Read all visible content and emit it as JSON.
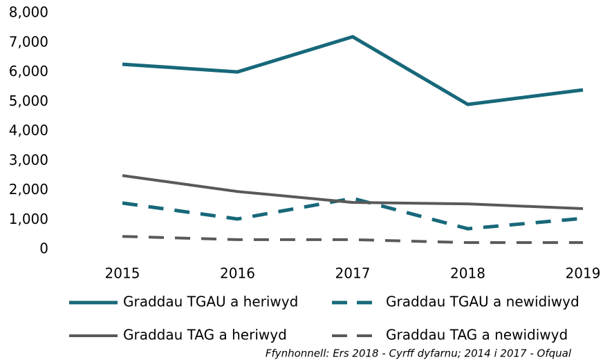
{
  "chart_data": {
    "type": "line",
    "categories": [
      "2015",
      "2016",
      "2017",
      "2018",
      "2019"
    ],
    "series": [
      {
        "name": "Graddau TGAU a heriwyd",
        "color": "#17687a",
        "linestyle": "solid",
        "values": [
          6270,
          6010,
          7200,
          4910,
          5400
        ]
      },
      {
        "name": "Graddau TGAU a newidiwyd",
        "color": "#17687a",
        "linestyle": "dashed",
        "values": [
          1570,
          1030,
          1730,
          700,
          1050
        ]
      },
      {
        "name": "Graddau TAG a heriwyd",
        "color": "#595959",
        "linestyle": "solid",
        "values": [
          2500,
          1960,
          1590,
          1540,
          1380
        ]
      },
      {
        "name": "Graddau TAG a newidiwyd",
        "color": "#595959",
        "linestyle": "dashed",
        "values": [
          440,
          330,
          330,
          230,
          230
        ]
      }
    ],
    "ylim": [
      0,
      8000
    ],
    "yticks": [
      0,
      {
        "value": 1000,
        "label": "1,000"
      },
      {
        "value": 2000,
        "label": "2,000"
      },
      {
        "value": 3000,
        "label": "3,000"
      },
      {
        "value": 4000,
        "label": "4,000"
      },
      {
        "value": 5000,
        "label": "5,000"
      },
      {
        "value": 6000,
        "label": "6,000"
      },
      {
        "value": 7000,
        "label": "7,000"
      },
      {
        "value": 8000,
        "label": "8,000"
      }
    ],
    "grid": false,
    "source": "Ffynhonnell: Ers 2018 - Cyrff dyfarnu; 2014 i 2017 - Ofqual"
  }
}
